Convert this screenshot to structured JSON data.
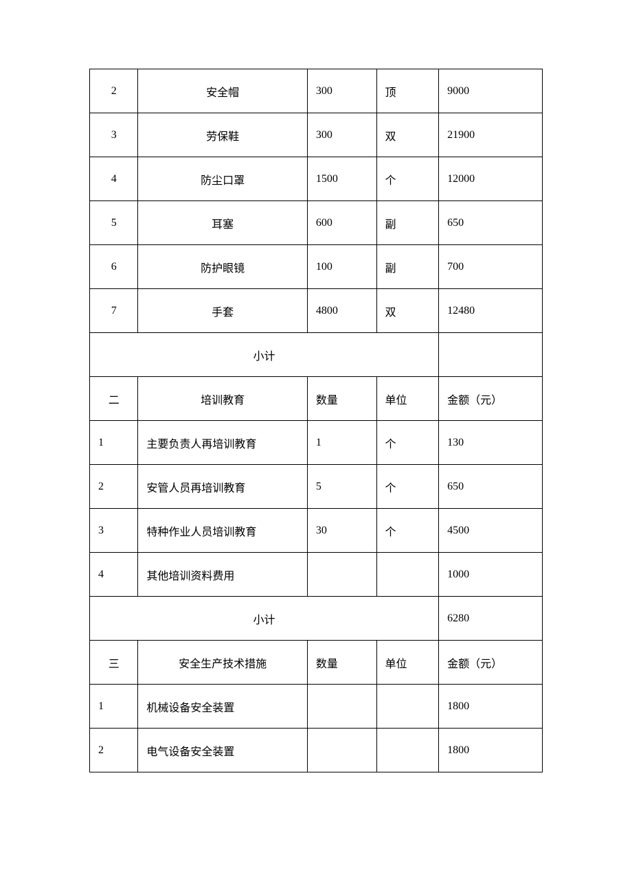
{
  "table": {
    "sections": [
      {
        "rows": [
          {
            "num": "2",
            "name": "安全帽",
            "qty": "300",
            "unit": "顶",
            "amount": "9000",
            "name_align": "center"
          },
          {
            "num": "3",
            "name": "劳保鞋",
            "qty": "300",
            "unit": "双",
            "amount": "21900",
            "name_align": "center"
          },
          {
            "num": "4",
            "name": "防尘口罩",
            "qty": "1500",
            "unit": "个",
            "amount": "12000",
            "name_align": "center"
          },
          {
            "num": "5",
            "name": "耳塞",
            "qty": "600",
            "unit": "副",
            "amount": "650",
            "name_align": "center"
          },
          {
            "num": "6",
            "name": "防护眼镜",
            "qty": "100",
            "unit": "副",
            "amount": "700",
            "name_align": "center"
          },
          {
            "num": "7",
            "name": "手套",
            "qty": "4800",
            "unit": "双",
            "amount": "12480",
            "name_align": "center"
          }
        ],
        "subtotal": {
          "label": "小计",
          "value": ""
        }
      },
      {
        "header": {
          "num": "二",
          "name": "培训教育",
          "qty": "数量",
          "unit": "单位",
          "amount": "金额（元）"
        },
        "rows": [
          {
            "num": "1",
            "name": "主要负责人再培训教育",
            "qty": "1",
            "unit": "个",
            "amount": "130",
            "name_align": "left"
          },
          {
            "num": "2",
            "name": "安管人员再培训教育",
            "qty": "5",
            "unit": "个",
            "amount": "650",
            "name_align": "left"
          },
          {
            "num": "3",
            "name": "特种作业人员培训教育",
            "qty": "30",
            "unit": "个",
            "amount": "4500",
            "name_align": "left"
          },
          {
            "num": "4",
            "name": "其他培训资料费用",
            "qty": "",
            "unit": "",
            "amount": "1000",
            "name_align": "left"
          }
        ],
        "subtotal": {
          "label": "小计",
          "value": "6280"
        }
      },
      {
        "header": {
          "num": "三",
          "name": "安全生产技术措施",
          "qty": "数量",
          "unit": "单位",
          "amount": "金额（元）"
        },
        "rows": [
          {
            "num": "1",
            "name": "机械设备安全装置",
            "qty": "",
            "unit": "",
            "amount": "1800",
            "name_align": "left"
          },
          {
            "num": "2",
            "name": "电气设备安全装置",
            "qty": "",
            "unit": "",
            "amount": "1800",
            "name_align": "left"
          }
        ]
      }
    ]
  }
}
